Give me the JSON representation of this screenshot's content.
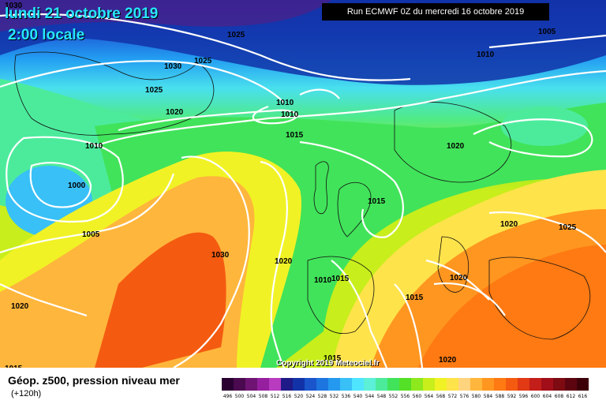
{
  "header": {
    "date": "lundi 21 octobre 2019",
    "time": "2:00 locale",
    "run": "Run ECMWF 0Z du mercredi 16 octobre 2019"
  },
  "copyright": "Copyright 2019 Meteociel.fr",
  "footer": {
    "title": "Géop. z500, pression niveau mer",
    "lead": "(+120h)"
  },
  "legend": {
    "values": [
      "496",
      "500",
      "504",
      "508",
      "512",
      "516",
      "520",
      "524",
      "528",
      "532",
      "536",
      "540",
      "544",
      "548",
      "552",
      "556",
      "560",
      "564",
      "568",
      "572",
      "576",
      "580",
      "584",
      "588",
      "592",
      "596",
      "600",
      "604",
      "608",
      "612",
      "616"
    ],
    "colors": [
      "#2a0033",
      "#4b0a4f",
      "#6f1473",
      "#961fa0",
      "#b83bc0",
      "#1f1a87",
      "#1233a8",
      "#1a55cc",
      "#1d75e0",
      "#2599f0",
      "#38c0f7",
      "#4fe5ff",
      "#5cf0d9",
      "#4ceb9c",
      "#41e35a",
      "#53e026",
      "#8ee81e",
      "#c8ee1c",
      "#f1f225",
      "#ffe34a",
      "#ffd47f",
      "#ffb63c",
      "#ff9620",
      "#ff7a12",
      "#f45b10",
      "#e13a14",
      "#c41e1a",
      "#a10e1a",
      "#7e0a12",
      "#5c0510",
      "#3d0008"
    ]
  },
  "isobars": {
    "labels": [
      "1030",
      "1025",
      "1030",
      "1025",
      "1025",
      "1020",
      "1010",
      "1010",
      "1010",
      "1015",
      "1005",
      "1010",
      "1020",
      "1000",
      "1005",
      "1015",
      "1030",
      "1020",
      "1015",
      "1010",
      "1015",
      "1020",
      "1025",
      "1020",
      "1015",
      "1020",
      "1015",
      "1020"
    ]
  }
}
